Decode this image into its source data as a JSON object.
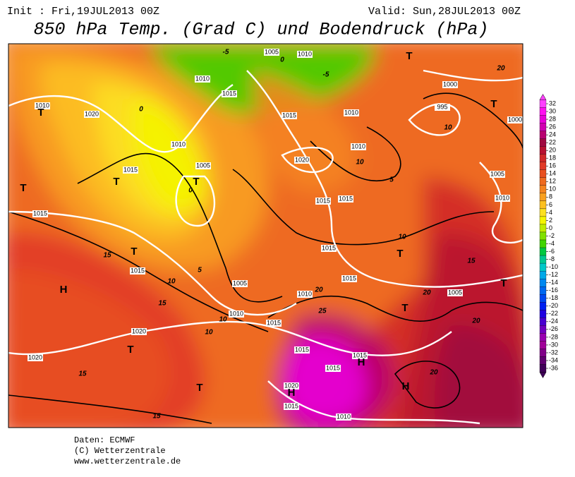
{
  "header": {
    "init": "Init : Fri,19JUL2013 00Z",
    "valid": "Valid: Sun,28JUL2013 00Z",
    "title": "850 hPa Temp. (Grad C) und Bodendruck (hPa)"
  },
  "colorbar": {
    "levels": [
      32,
      30,
      28,
      26,
      24,
      22,
      20,
      18,
      16,
      14,
      12,
      10,
      8,
      6,
      4,
      2,
      0,
      -2,
      -4,
      -6,
      -8,
      -10,
      -12,
      -14,
      -16,
      -18,
      -20,
      -22,
      -24,
      -26,
      -28,
      -30,
      -32,
      -34,
      -36
    ],
    "colors": [
      "#ff40ff",
      "#ff10f0",
      "#e800d8",
      "#d000b0",
      "#b80070",
      "#a00840",
      "#b81030",
      "#d02828",
      "#e03a28",
      "#e85020",
      "#ee6a20",
      "#f48420",
      "#f8a020",
      "#fcc020",
      "#fce020",
      "#f4f400",
      "#c0ec00",
      "#80e000",
      "#40d400",
      "#00c840",
      "#00c890",
      "#00c8c8",
      "#00a8e8",
      "#0088f0",
      "#0068f0",
      "#0048f0",
      "#0020f0",
      "#2000e0",
      "#4800d0",
      "#7000c0",
      "#9800b0",
      "#a00098",
      "#800088",
      "#600070",
      "#400058"
    ]
  },
  "map_labels": [
    "1005",
    "1010",
    "-5",
    "T",
    "20",
    "1010",
    "T",
    "1020",
    "1010",
    "1015",
    "1015",
    "1010",
    "995",
    "10",
    "1000",
    "T",
    "1000",
    "1010",
    "1015",
    "1005",
    "T",
    "T",
    "0",
    "1020",
    "1010",
    "10",
    "1005",
    "T",
    "1015",
    "1015",
    "1010",
    "1015",
    "10",
    "T",
    "15",
    "1015",
    "T",
    "15",
    "1015",
    "5",
    "H",
    "10",
    "1005",
    "1015",
    "T",
    "20",
    "1005",
    "1010",
    "20",
    "15",
    "1010",
    "10",
    "1015",
    "25",
    "T",
    "20",
    "1020",
    "10",
    "T",
    "1015",
    "1015",
    "H",
    "1020",
    "15",
    "1015",
    "20",
    "T",
    "H",
    "1020",
    "H",
    "1015",
    "15",
    "1010",
    "-5",
    "5",
    "0",
    "0"
  ],
  "footer": {
    "data": "Daten: ECMWF",
    "copyright": "(C) Wetterzentrale",
    "url": "www.wetterzentrale.de"
  }
}
